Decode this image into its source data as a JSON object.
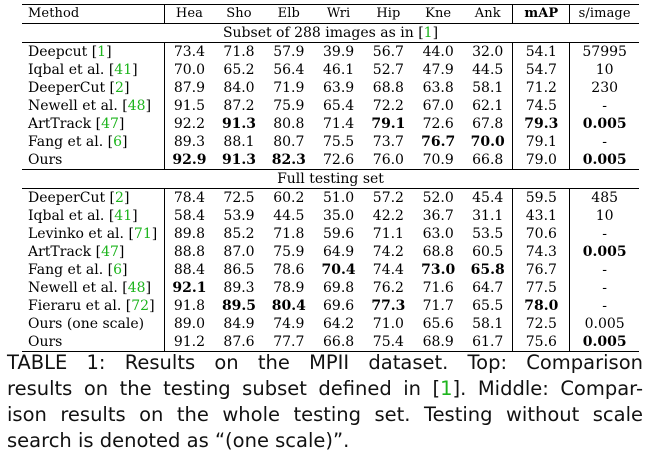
{
  "table": {
    "columns": [
      "Method",
      "Hea",
      "Sho",
      "Elb",
      "Wri",
      "Hip",
      "Kne",
      "Ank",
      "mAP",
      "s/image"
    ],
    "sections": [
      {
        "title_prefix": "Subset of 288 images as in [",
        "title_cite": "1",
        "title_suffix": "]",
        "rows": [
          {
            "method": "Deepcut ",
            "cite": "1",
            "values": [
              "73.4",
              "71.8",
              "57.9",
              "39.9",
              "56.7",
              "44.0",
              "32.0",
              "54.1",
              "57995"
            ],
            "bold": []
          },
          {
            "method": "Iqbal et al. ",
            "cite": "41",
            "values": [
              "70.0",
              "65.2",
              "56.4",
              "46.1",
              "52.7",
              "47.9",
              "44.5",
              "54.7",
              "10"
            ],
            "bold": []
          },
          {
            "method": "DeeperCut ",
            "cite": "2",
            "values": [
              "87.9",
              "84.0",
              "71.9",
              "63.9",
              "68.8",
              "63.8",
              "58.1",
              "71.2",
              "230"
            ],
            "bold": []
          },
          {
            "method": "Newell et al. ",
            "cite": "48",
            "values": [
              "91.5",
              "87.2",
              "75.9",
              "65.4",
              "72.2",
              "67.0",
              "62.1",
              "74.5",
              "-"
            ],
            "bold": []
          },
          {
            "method": "ArtTrack ",
            "cite": "47",
            "values": [
              "92.2",
              "91.3",
              "80.8",
              "71.4",
              "79.1",
              "72.6",
              "67.8",
              "79.3",
              "0.005"
            ],
            "bold": [
              1,
              4,
              7,
              8
            ]
          },
          {
            "method": "Fang et al. ",
            "cite": "6",
            "values": [
              "89.3",
              "88.1",
              "80.7",
              "75.5",
              "73.7",
              "76.7",
              "70.0",
              "79.1",
              "-"
            ],
            "bold": [
              5,
              6
            ]
          },
          {
            "method": "Ours",
            "cite": "",
            "values": [
              "92.9",
              "91.3",
              "82.3",
              "72.6",
              "76.0",
              "70.9",
              "66.8",
              "79.0",
              "0.005"
            ],
            "bold": [
              0,
              1,
              2,
              8
            ]
          }
        ]
      },
      {
        "title_prefix": "Full testing set",
        "title_cite": "",
        "title_suffix": "",
        "rows": [
          {
            "method": "DeeperCut ",
            "cite": "2",
            "values": [
              "78.4",
              "72.5",
              "60.2",
              "51.0",
              "57.2",
              "52.0",
              "45.4",
              "59.5",
              "485"
            ],
            "bold": []
          },
          {
            "method": "Iqbal et al. ",
            "cite": "41",
            "values": [
              "58.4",
              "53.9",
              "44.5",
              "35.0",
              "42.2",
              "36.7",
              "31.1",
              "43.1",
              "10"
            ],
            "bold": []
          },
          {
            "method": "Levinko et al. ",
            "cite": "71",
            "values": [
              "89.8",
              "85.2",
              "71.8",
              "59.6",
              "71.1",
              "63.0",
              "53.5",
              "70.6",
              "-"
            ],
            "bold": []
          },
          {
            "method": "ArtTrack ",
            "cite": "47",
            "values": [
              "88.8",
              "87.0",
              "75.9",
              "64.9",
              "74.2",
              "68.8",
              "60.5",
              "74.3",
              "0.005"
            ],
            "bold": [
              8
            ]
          },
          {
            "method": "Fang et al. ",
            "cite": "6",
            "values": [
              "88.4",
              "86.5",
              "78.6",
              "70.4",
              "74.4",
              "73.0",
              "65.8",
              "76.7",
              "-"
            ],
            "bold": [
              3,
              5,
              6
            ]
          },
          {
            "method": "Newell et al. ",
            "cite": "48",
            "values": [
              "92.1",
              "89.3",
              "78.9",
              "69.8",
              "76.2",
              "71.6",
              "64.7",
              "77.5",
              "-"
            ],
            "bold": [
              0
            ]
          },
          {
            "method": "Fieraru et al. ",
            "cite": "72",
            "values": [
              "91.8",
              "89.5",
              "80.4",
              "69.6",
              "77.3",
              "71.7",
              "65.5",
              "78.0",
              "-"
            ],
            "bold": [
              1,
              2,
              4,
              7
            ]
          },
          {
            "method": "Ours (one scale)",
            "cite": "",
            "values": [
              "89.0",
              "84.9",
              "74.9",
              "64.2",
              "71.0",
              "65.6",
              "58.1",
              "72.5",
              "0.005"
            ],
            "bold": []
          },
          {
            "method": "Ours",
            "cite": "",
            "values": [
              "91.2",
              "87.6",
              "77.7",
              "66.8",
              "75.4",
              "68.9",
              "61.7",
              "75.6",
              "0.005"
            ],
            "bold": [
              8
            ]
          }
        ]
      }
    ]
  },
  "caption": {
    "lines": [
      {
        "parts": [
          "TABLE 1: Results on the MPII dataset. Top: Comparison"
        ],
        "cite": ""
      },
      {
        "parts": [
          "results on the testing subset defined in [",
          "]. Middle: Compar-"
        ],
        "cite": "1"
      },
      {
        "parts": [
          "ison results on the whole testing set. Testing without scale"
        ],
        "cite": ""
      },
      {
        "parts": [
          "search is denoted as “(one scale)”."
        ],
        "cite": ""
      }
    ]
  },
  "colors": {
    "citation": "#1db41d",
    "text": "#000000"
  }
}
